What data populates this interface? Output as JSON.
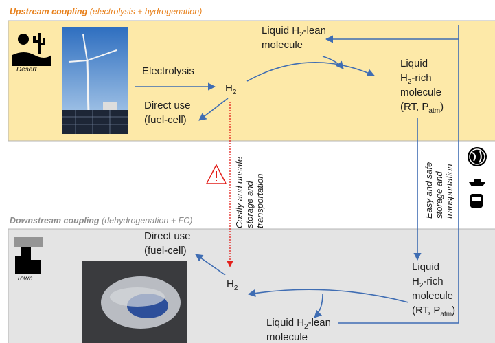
{
  "upstream": {
    "title": "Upstream coupling",
    "subtitle": "(electrolysis + hydrogenation)"
  },
  "downstream": {
    "title": "Downstream coupling",
    "subtitle": "(dehydrogenation + FC)"
  },
  "icons": {
    "desert": "Desert",
    "town": "Town"
  },
  "nodes": {
    "electrolysis": [
      [
        "Electrolysis"
      ]
    ],
    "h2_top": [
      [
        "H",
        {
          "sub": "2"
        }
      ]
    ],
    "direct_top": [
      [
        "Direct use"
      ],
      [
        "(fuel-cell)"
      ]
    ],
    "lean_top": [
      [
        "Liquid H",
        {
          "sub": "2"
        },
        "-lean"
      ],
      [
        "molecule"
      ]
    ],
    "rich_top": [
      [
        "Liquid"
      ],
      [
        "H",
        {
          "sub": "2"
        },
        "-rich"
      ],
      [
        "molecule"
      ],
      [
        "(RT, P",
        {
          "sub": "atm"
        },
        ")"
      ]
    ],
    "costly": [
      [
        "Costly and unsafe"
      ],
      [
        "storage and"
      ],
      [
        "transportation"
      ]
    ],
    "easy": [
      [
        "Easy and safe"
      ],
      [
        "storage and"
      ],
      [
        "transportation"
      ]
    ],
    "direct_bottom": [
      [
        "Direct use"
      ],
      [
        "(fuel-cell)"
      ]
    ],
    "h2_bottom": [
      [
        "H",
        {
          "sub": "2"
        }
      ]
    ],
    "rich_bottom": [
      [
        "Liquid"
      ],
      [
        "H",
        {
          "sub": "2"
        },
        "-rich"
      ],
      [
        "molecule"
      ],
      [
        "(RT, P",
        {
          "sub": "atm"
        },
        ")"
      ]
    ],
    "lean_bottom": [
      [
        "Liquid H",
        {
          "sub": "2"
        },
        "-lean"
      ],
      [
        "molecule"
      ]
    ]
  }
}
